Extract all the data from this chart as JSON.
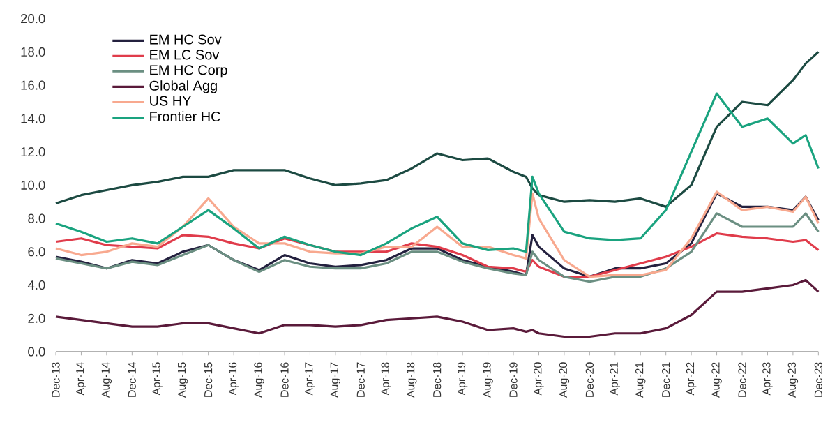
{
  "chart_data": {
    "type": "line",
    "x": [
      "2013-12",
      "2014-04",
      "2014-08",
      "2014-12",
      "2015-04",
      "2015-08",
      "2015-12",
      "2016-04",
      "2016-08",
      "2016-12",
      "2017-04",
      "2017-08",
      "2017-12",
      "2018-04",
      "2018-08",
      "2018-12",
      "2019-04",
      "2019-08",
      "2019-12",
      "2020-02",
      "2020-03",
      "2020-04",
      "2020-08",
      "2020-12",
      "2021-04",
      "2021-08",
      "2021-12",
      "2022-04",
      "2022-08",
      "2022-12",
      "2023-04",
      "2023-08",
      "2023-10",
      "2023-12"
    ],
    "series": [
      {
        "color": "#1c4a42",
        "values": [
          8.9,
          9.4,
          9.7,
          10.0,
          10.2,
          10.5,
          10.5,
          10.9,
          10.9,
          10.9,
          10.4,
          10.0,
          10.1,
          10.3,
          11.0,
          11.9,
          11.5,
          11.6,
          10.8,
          10.5,
          9.8,
          9.4,
          9.0,
          9.1,
          9.0,
          9.2,
          8.7,
          10.0,
          13.5,
          15.0,
          14.8,
          16.3,
          17.3,
          18.0
        ]
      },
      {
        "name": "EM HC Sov",
        "color": "#24213f",
        "values": [
          5.7,
          5.4,
          5.0,
          5.5,
          5.3,
          6.0,
          6.4,
          5.5,
          4.9,
          5.8,
          5.3,
          5.1,
          5.2,
          5.5,
          6.2,
          6.2,
          5.5,
          5.1,
          4.8,
          4.6,
          7.0,
          6.3,
          5.0,
          4.5,
          5.0,
          5.0,
          5.3,
          6.5,
          9.5,
          8.7,
          8.7,
          8.5,
          9.3,
          7.9
        ]
      },
      {
        "name": "EM LC Sov",
        "color": "#e03c4b",
        "values": [
          6.6,
          6.8,
          6.4,
          6.3,
          6.2,
          7.0,
          6.9,
          6.5,
          6.2,
          6.8,
          6.4,
          6.0,
          6.0,
          6.0,
          6.5,
          6.3,
          5.8,
          5.1,
          5.0,
          4.8,
          5.5,
          5.1,
          4.5,
          4.5,
          4.9,
          5.3,
          5.7,
          6.3,
          7.1,
          6.9,
          6.8,
          6.6,
          6.7,
          6.1
        ]
      },
      {
        "name": "EM HC Corp",
        "color": "#6b8f82",
        "values": [
          5.6,
          5.3,
          5.0,
          5.4,
          5.2,
          5.8,
          6.4,
          5.5,
          4.8,
          5.5,
          5.1,
          5.0,
          5.0,
          5.3,
          6.0,
          6.0,
          5.4,
          5.0,
          4.7,
          4.6,
          6.0,
          5.5,
          4.5,
          4.2,
          4.5,
          4.5,
          5.0,
          6.0,
          8.3,
          7.5,
          7.5,
          7.5,
          8.3,
          7.2
        ]
      },
      {
        "name": "Global Agg",
        "color": "#5a1a3a",
        "values": [
          2.1,
          1.9,
          1.7,
          1.5,
          1.5,
          1.7,
          1.7,
          1.4,
          1.1,
          1.6,
          1.6,
          1.5,
          1.6,
          1.9,
          2.0,
          2.1,
          1.8,
          1.3,
          1.4,
          1.2,
          1.3,
          1.1,
          0.9,
          0.9,
          1.1,
          1.1,
          1.4,
          2.2,
          3.6,
          3.6,
          3.8,
          4.0,
          4.3,
          3.6
        ]
      },
      {
        "name": "US HY",
        "color": "#f8a98f",
        "values": [
          6.2,
          5.8,
          6.0,
          6.5,
          6.3,
          7.5,
          9.2,
          7.5,
          6.5,
          6.5,
          6.0,
          5.9,
          5.9,
          6.3,
          6.3,
          7.5,
          6.3,
          6.3,
          5.8,
          5.6,
          9.5,
          8.0,
          5.5,
          4.5,
          4.6,
          4.6,
          4.9,
          6.8,
          9.6,
          8.5,
          8.7,
          8.4,
          9.3,
          7.7
        ]
      },
      {
        "name": "Frontier HC",
        "color": "#1aa37f",
        "values": [
          7.7,
          7.2,
          6.6,
          6.8,
          6.5,
          7.5,
          8.5,
          7.4,
          6.2,
          6.9,
          6.4,
          6.0,
          5.8,
          6.5,
          7.4,
          8.1,
          6.5,
          6.1,
          6.2,
          6.0,
          10.5,
          9.5,
          7.2,
          6.8,
          6.7,
          6.8,
          8.5,
          12.0,
          15.5,
          13.5,
          14.0,
          12.5,
          13.0,
          11.0
        ]
      }
    ],
    "xlim": [
      "2013-12",
      "2023-12"
    ],
    "xticks": [
      {
        "value": "2013-12",
        "label": "Dec-13"
      },
      {
        "value": "2014-04",
        "label": "Apr-14"
      },
      {
        "value": "2014-08",
        "label": "Aug-14"
      },
      {
        "value": "2014-12",
        "label": "Dec-14"
      },
      {
        "value": "2015-04",
        "label": "Apr-15"
      },
      {
        "value": "2015-08",
        "label": "Aug-15"
      },
      {
        "value": "2015-12",
        "label": "Dec-15"
      },
      {
        "value": "2016-04",
        "label": "Apr-16"
      },
      {
        "value": "2016-08",
        "label": "Aug-16"
      },
      {
        "value": "2016-12",
        "label": "Dec-16"
      },
      {
        "value": "2017-04",
        "label": "Apr-17"
      },
      {
        "value": "2017-08",
        "label": "Aug-17"
      },
      {
        "value": "2017-12",
        "label": "Dec-17"
      },
      {
        "value": "2018-04",
        "label": "Apr-18"
      },
      {
        "value": "2018-08",
        "label": "Aug-18"
      },
      {
        "value": "2018-12",
        "label": "Dec-18"
      },
      {
        "value": "2019-04",
        "label": "Apr-19"
      },
      {
        "value": "2019-08",
        "label": "Aug-19"
      },
      {
        "value": "2019-12",
        "label": "Dec-19"
      },
      {
        "value": "2020-04",
        "label": "Apr-20"
      },
      {
        "value": "2020-08",
        "label": "Aug-20"
      },
      {
        "value": "2020-12",
        "label": "Dec-20"
      },
      {
        "value": "2021-04",
        "label": "Apr-21"
      },
      {
        "value": "2021-08",
        "label": "Aug-21"
      },
      {
        "value": "2021-12",
        "label": "Dec-21"
      },
      {
        "value": "2022-04",
        "label": "Apr-22"
      },
      {
        "value": "2022-08",
        "label": "Aug-22"
      },
      {
        "value": "2022-12",
        "label": "Dec-22"
      },
      {
        "value": "2023-04",
        "label": "Apr-23"
      },
      {
        "value": "2023-08",
        "label": "Aug-23"
      },
      {
        "value": "2023-12",
        "label": "Dec-23"
      }
    ],
    "ylim": [
      0,
      20
    ],
    "yticks": [
      {
        "value": 0,
        "label": "0.0"
      },
      {
        "value": 2,
        "label": "2.0"
      },
      {
        "value": 4,
        "label": "4.0"
      },
      {
        "value": 6,
        "label": "6.0"
      },
      {
        "value": 8,
        "label": "8.0"
      },
      {
        "value": 10,
        "label": "10.0"
      },
      {
        "value": 12,
        "label": "12.0"
      },
      {
        "value": 14,
        "label": "14.0"
      },
      {
        "value": 16,
        "label": "16.0"
      },
      {
        "value": 18,
        "label": "18.0"
      },
      {
        "value": 20,
        "label": "20.0"
      }
    ],
    "legend": "top left",
    "marker": "none",
    "line_style": "solid"
  }
}
